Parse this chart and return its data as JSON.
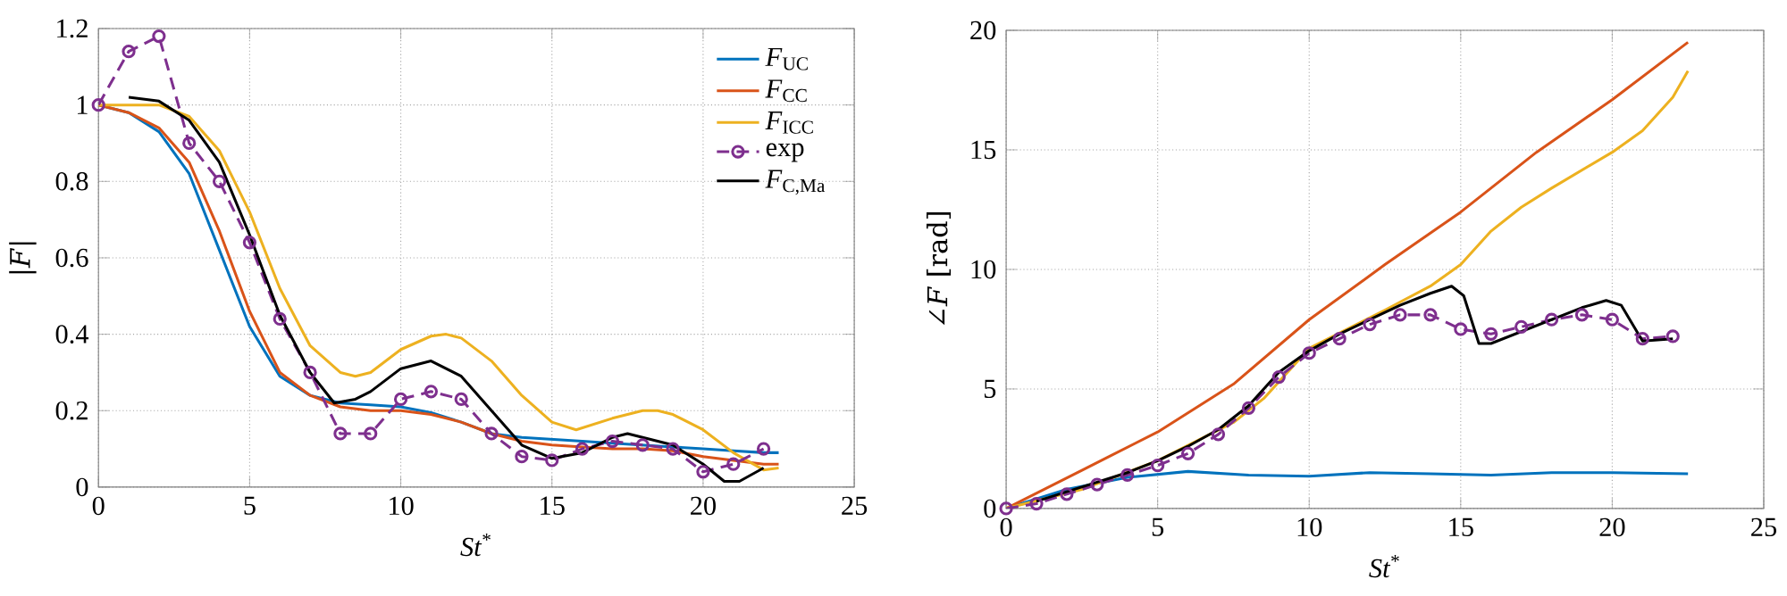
{
  "chart_data": [
    {
      "type": "line",
      "xlabel": "*St*$^{*}$",
      "ylabel": "|*F*|",
      "xlim": [
        0,
        25
      ],
      "ylim": [
        0,
        1.2
      ],
      "xticks": [
        0,
        5,
        10,
        15,
        20,
        25
      ],
      "yticks": [
        0,
        0.2,
        0.4,
        0.6,
        0.8,
        1,
        1.2
      ],
      "grid": true,
      "legend": "top right",
      "series": [
        {
          "name": "*F*$_{UC}$",
          "color": "#0072bd",
          "x": [
            0,
            1,
            2,
            3,
            4,
            5,
            6,
            7,
            8,
            9,
            10,
            11,
            12,
            13,
            14,
            15,
            16,
            17,
            18,
            19,
            20,
            21,
            22,
            22.5
          ],
          "values": [
            1,
            0.98,
            0.93,
            0.82,
            0.62,
            0.42,
            0.29,
            0.24,
            0.22,
            0.215,
            0.21,
            0.195,
            0.17,
            0.14,
            0.13,
            0.125,
            0.12,
            0.115,
            0.11,
            0.105,
            0.1,
            0.095,
            0.09,
            0.09
          ]
        },
        {
          "name": "*F*$_{CC}$",
          "color": "#d95319",
          "x": [
            0,
            1,
            2,
            3,
            4,
            5,
            6,
            7,
            8,
            9,
            10,
            11,
            12,
            13,
            14,
            15,
            16,
            17,
            18,
            19,
            20,
            21,
            22,
            22.5
          ],
          "values": [
            1,
            0.98,
            0.94,
            0.85,
            0.67,
            0.46,
            0.3,
            0.24,
            0.21,
            0.2,
            0.2,
            0.19,
            0.17,
            0.14,
            0.12,
            0.11,
            0.105,
            0.1,
            0.1,
            0.095,
            0.08,
            0.07,
            0.06,
            0.06
          ]
        },
        {
          "name": "*F*$_{ICC}$",
          "color": "#edb120",
          "x": [
            0,
            1,
            2,
            3,
            4,
            5,
            6,
            7,
            8,
            8.5,
            9,
            10,
            11,
            11.5,
            12,
            13,
            14,
            15,
            15.8,
            17,
            18,
            18.5,
            19,
            20,
            21,
            22,
            22.5
          ],
          "values": [
            1,
            1,
            1,
            0.97,
            0.88,
            0.72,
            0.52,
            0.37,
            0.3,
            0.29,
            0.3,
            0.36,
            0.395,
            0.4,
            0.39,
            0.33,
            0.24,
            0.17,
            0.15,
            0.18,
            0.2,
            0.2,
            0.19,
            0.15,
            0.09,
            0.045,
            0.05
          ]
        },
        {
          "name": "exp",
          "color": "#7e2f8e",
          "marker": "circle",
          "line_style": "dashed",
          "x": [
            0,
            1,
            2,
            3,
            4,
            5,
            6,
            7,
            8,
            9,
            10,
            11,
            12,
            13,
            14,
            15,
            16,
            17,
            18,
            19,
            20,
            21,
            22
          ],
          "values": [
            1,
            1.14,
            1.18,
            0.9,
            0.8,
            0.64,
            0.44,
            0.3,
            0.14,
            0.14,
            0.23,
            0.25,
            0.23,
            0.14,
            0.08,
            0.07,
            0.1,
            0.12,
            0.11,
            0.1,
            0.04,
            0.06,
            0.1
          ]
        },
        {
          "name": "*F*$_{C,Ma}$",
          "color": "#000000",
          "x": [
            1,
            2,
            3,
            4,
            5,
            6,
            7,
            7.8,
            8.5,
            9,
            10,
            11,
            12,
            13,
            14,
            15,
            16,
            17,
            17.5,
            18,
            19,
            20,
            20.7,
            21.2,
            22
          ],
          "values": [
            1.02,
            1.01,
            0.96,
            0.85,
            0.66,
            0.45,
            0.3,
            0.22,
            0.23,
            0.25,
            0.31,
            0.33,
            0.29,
            0.2,
            0.11,
            0.075,
            0.09,
            0.13,
            0.14,
            0.13,
            0.11,
            0.06,
            0.015,
            0.015,
            0.05
          ]
        }
      ]
    },
    {
      "type": "line",
      "xlabel": "*St*$^{*}$",
      "ylabel": "∠*F* [rad]",
      "xlim": [
        0,
        25
      ],
      "ylim": [
        0,
        20
      ],
      "xticks": [
        0,
        5,
        10,
        15,
        20,
        25
      ],
      "yticks": [
        0,
        5,
        10,
        15,
        20
      ],
      "grid": true,
      "series": [
        {
          "color": "#0072bd",
          "x": [
            0,
            2,
            4,
            6,
            8,
            10,
            12,
            14,
            16,
            18,
            20,
            22.5
          ],
          "values": [
            0,
            0.8,
            1.3,
            1.55,
            1.4,
            1.35,
            1.5,
            1.45,
            1.4,
            1.5,
            1.5,
            1.45
          ]
        },
        {
          "color": "#d95319",
          "x": [
            0,
            2.5,
            5,
            7.5,
            10,
            12.5,
            15,
            17.5,
            20,
            22.5
          ],
          "values": [
            0,
            1.6,
            3.2,
            5.2,
            7.9,
            10.2,
            12.4,
            14.9,
            17.1,
            19.5
          ]
        },
        {
          "color": "#edb120",
          "x": [
            0,
            2.5,
            5,
            7.5,
            8.5,
            10,
            12.5,
            14,
            15,
            16,
            17,
            18,
            20,
            21,
            22,
            22.5
          ],
          "values": [
            0,
            0.8,
            2,
            3.6,
            4.6,
            6.7,
            8.3,
            9.3,
            10.2,
            11.6,
            12.6,
            13.4,
            14.9,
            15.8,
            17.2,
            18.3
          ]
        },
        {
          "color": "#7e2f8e",
          "marker": "circle",
          "line_style": "dashed",
          "x": [
            0,
            1,
            2,
            3,
            4,
            5,
            6,
            7,
            8,
            9,
            10,
            11,
            12,
            13,
            14,
            15,
            16,
            17,
            18,
            19,
            20,
            21,
            22
          ],
          "values": [
            0,
            0.2,
            0.6,
            1,
            1.4,
            1.8,
            2.3,
            3.1,
            4.2,
            5.5,
            6.5,
            7.1,
            7.7,
            8.1,
            8.1,
            7.5,
            7.3,
            7.6,
            7.9,
            8.1,
            7.9,
            7.1,
            7.2
          ]
        },
        {
          "color": "#000000",
          "x": [
            1,
            2,
            3,
            4,
            5,
            6,
            7,
            8,
            9,
            10,
            11,
            12,
            13,
            14,
            14.7,
            15.1,
            15.6,
            16,
            17,
            18,
            19,
            19.8,
            20.3,
            21,
            22
          ],
          "values": [
            0.3,
            0.7,
            1.1,
            1.5,
            2,
            2.6,
            3.3,
            4.3,
            5.7,
            6.6,
            7.3,
            7.9,
            8.5,
            9,
            9.3,
            8.9,
            6.9,
            6.9,
            7.4,
            7.9,
            8.4,
            8.7,
            8.5,
            7,
            7.1
          ]
        }
      ]
    }
  ]
}
